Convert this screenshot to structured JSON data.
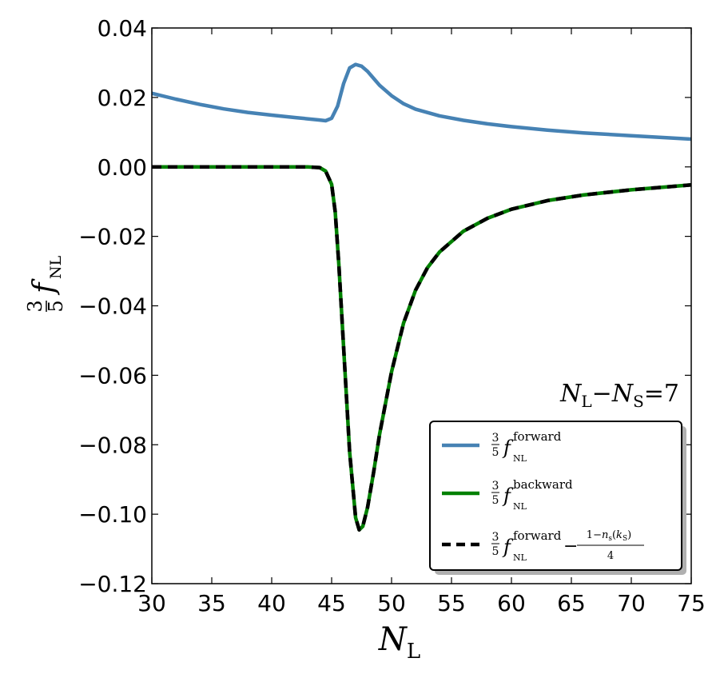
{
  "chart_data": {
    "type": "line",
    "xlim": [
      30,
      75
    ],
    "ylim": [
      -0.12,
      0.04
    ],
    "x_ticks": [
      "30",
      "35",
      "40",
      "45",
      "50",
      "55",
      "60",
      "65",
      "70",
      "75"
    ],
    "y_ticks": [
      "0.04",
      "0.02",
      "0.00",
      "−0.02",
      "−0.04",
      "−0.06",
      "−0.08",
      "−0.10",
      "−0.12"
    ],
    "xlabel": "N_L",
    "ylabel": "3/5 f_NL",
    "annotation": "N_L − N_S = 7",
    "legend_position": "lower-right",
    "grid": false,
    "series": [
      {
        "name": "3/5 f_NL^forward",
        "color": "#4682b4",
        "style": "solid",
        "x": [
          30,
          32,
          34,
          36,
          38,
          40,
          42,
          44,
          44.5,
          45,
          45.5,
          46,
          46.5,
          47,
          47.5,
          48,
          48.5,
          49,
          50,
          51,
          52,
          54,
          56,
          58,
          60,
          63,
          66,
          70,
          75
        ],
        "y": [
          0.0212,
          0.0195,
          0.018,
          0.0167,
          0.0157,
          0.0149,
          0.0142,
          0.0135,
          0.0133,
          0.014,
          0.0175,
          0.024,
          0.0285,
          0.0295,
          0.029,
          0.0275,
          0.0255,
          0.0235,
          0.0205,
          0.0182,
          0.0166,
          0.0147,
          0.0134,
          0.0124,
          0.0116,
          0.0106,
          0.0098,
          0.009,
          0.008
        ]
      },
      {
        "name": "3/5 f_NL^backward",
        "color": "#008000",
        "style": "solid",
        "x": [
          30,
          35,
          40,
          43,
          44,
          44.5,
          45,
          45.3,
          45.6,
          46,
          46.5,
          47,
          47.3,
          47.6,
          48,
          48.5,
          49,
          50,
          51,
          52,
          53,
          54,
          56,
          58,
          60,
          63,
          66,
          70,
          75
        ],
        "y": [
          0.0,
          0.0,
          0.0,
          0.0,
          -0.0002,
          -0.0012,
          -0.005,
          -0.013,
          -0.028,
          -0.052,
          -0.082,
          -0.101,
          -0.1045,
          -0.1035,
          -0.098,
          -0.088,
          -0.077,
          -0.059,
          -0.045,
          -0.0355,
          -0.029,
          -0.0245,
          -0.0185,
          -0.0148,
          -0.0122,
          -0.0097,
          -0.0081,
          -0.0066,
          -0.0052
        ]
      },
      {
        "name": "3/5 f_NL^forward − (1−n_s(k_S))/4",
        "color": "#000000",
        "style": "dashed",
        "x": [
          30,
          35,
          40,
          43,
          44,
          44.5,
          45,
          45.3,
          45.6,
          46,
          46.5,
          47,
          47.3,
          47.6,
          48,
          48.5,
          49,
          50,
          51,
          52,
          53,
          54,
          56,
          58,
          60,
          63,
          66,
          70,
          75
        ],
        "y": [
          0.0,
          0.0,
          0.0,
          0.0,
          -0.0002,
          -0.0012,
          -0.005,
          -0.013,
          -0.028,
          -0.052,
          -0.082,
          -0.101,
          -0.1045,
          -0.1035,
          -0.098,
          -0.088,
          -0.077,
          -0.059,
          -0.045,
          -0.0355,
          -0.029,
          -0.0245,
          -0.0185,
          -0.0148,
          -0.0122,
          -0.0097,
          -0.0081,
          -0.0066,
          -0.0052
        ]
      }
    ]
  }
}
